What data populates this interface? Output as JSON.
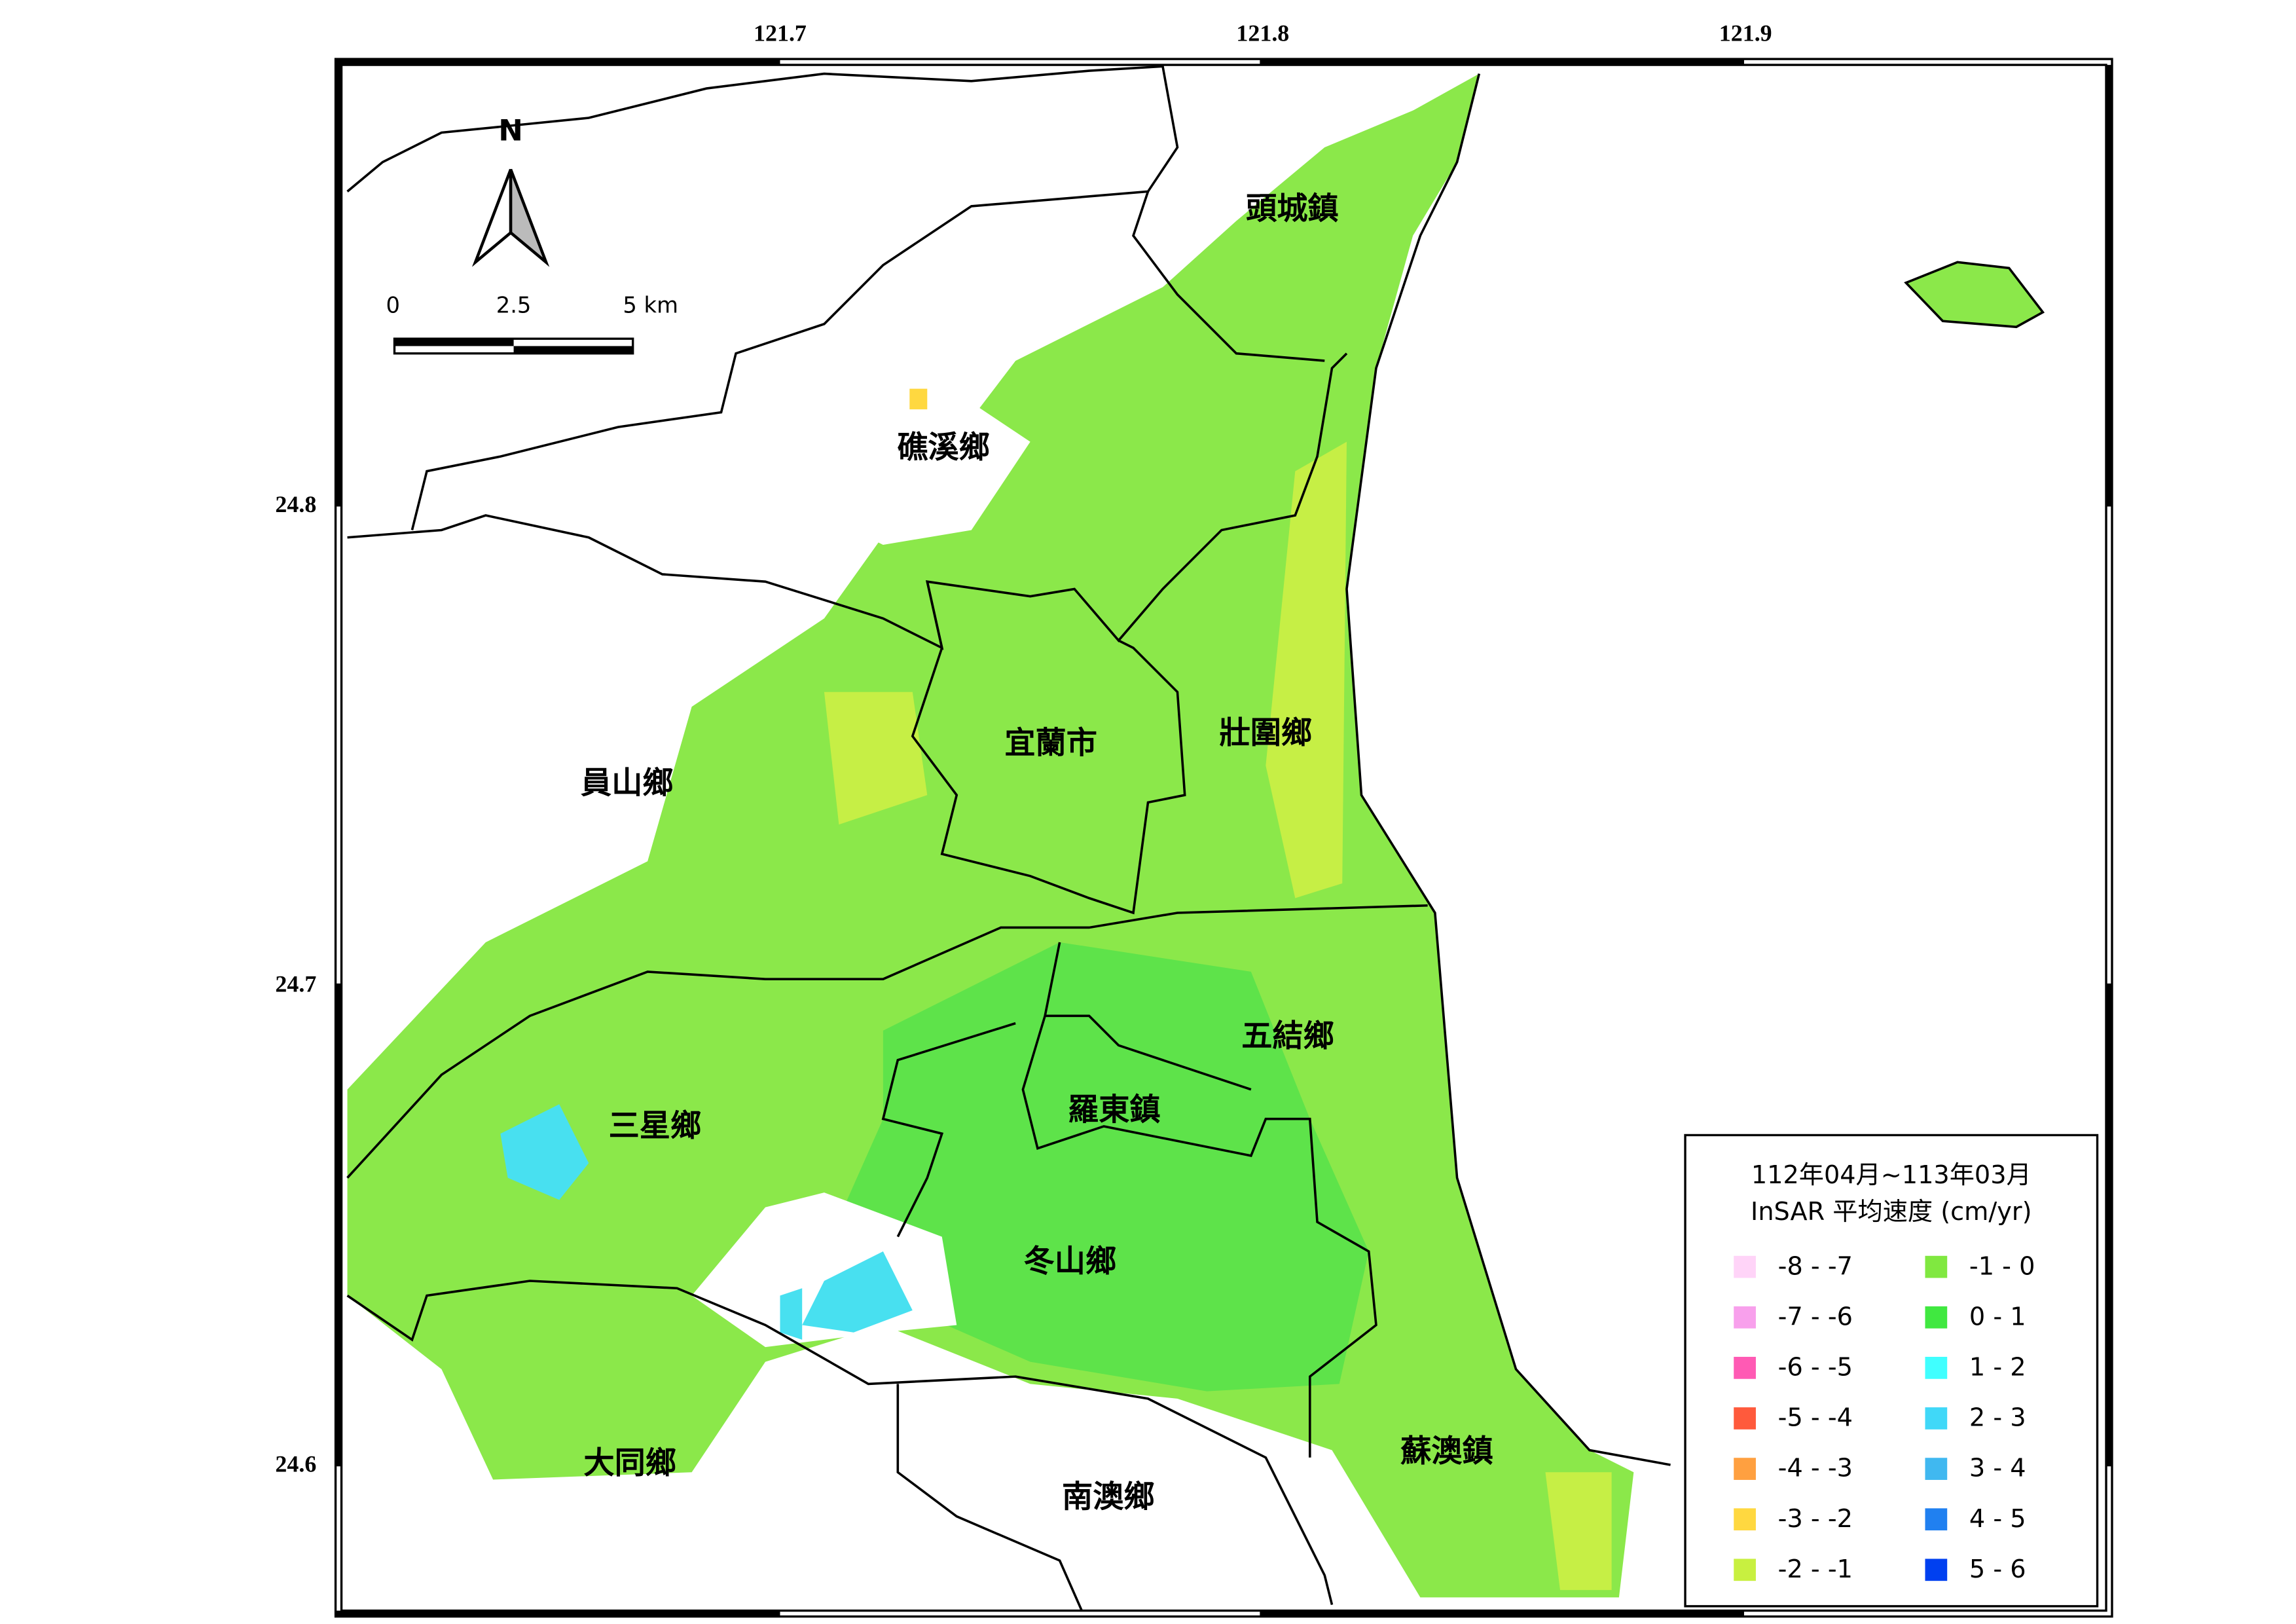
{
  "map": {
    "x_ticks": [
      121.7,
      121.8,
      121.9
    ],
    "y_ticks": [
      24.8,
      24.7,
      24.6
    ],
    "north": "N",
    "scale_bar": [
      "0",
      "2.5",
      "5 km"
    ],
    "townships": [
      "頭城鎮",
      "礁溪鄉",
      "宜蘭市",
      "壯圍鄉",
      "員山鄉",
      "五結鄉",
      "三星鄉",
      "羅東鎮",
      "冬山鄉",
      "蘇澳鎮",
      "大同鄉",
      "南澳鄉"
    ],
    "legend": {
      "title": [
        "112年04月~113年03月",
        "InSAR 平均速度 (cm/yr)"
      ],
      "entries": [
        {
          "label": "-8 - -7",
          "color": "#ffd4f8"
        },
        {
          "label": "-7 - -6",
          "color": "#f8a0ec"
        },
        {
          "label": "-6 - -5",
          "color": "#ff5ab4"
        },
        {
          "label": "-5 - -4",
          "color": "#ff5a3c"
        },
        {
          "label": "-4 - -3",
          "color": "#ffa040"
        },
        {
          "label": "-3 - -2",
          "color": "#ffd840"
        },
        {
          "label": "-2 - -1",
          "color": "#c8f040"
        },
        {
          "label": "-1 - 0",
          "color": "#80e840"
        },
        {
          "label": "0 - 1",
          "color": "#40e840"
        },
        {
          "label": "1 - 2",
          "color": "#40ffff"
        },
        {
          "label": "2 - 3",
          "color": "#40d8f8"
        },
        {
          "label": "3 - 4",
          "color": "#40b8f0"
        },
        {
          "label": "4 - 5",
          "color": "#2080f0"
        },
        {
          "label": "5 - 6",
          "color": "#0040f0"
        }
      ]
    }
  }
}
